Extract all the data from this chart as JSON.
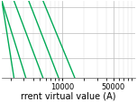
{
  "xlabel": "rrent virtual value (A)",
  "xlim": [
    1500,
    100000
  ],
  "ylim": [
    0.003,
    3000
  ],
  "background_color": "#ffffff",
  "grid_major_color": "#bbbbbb",
  "grid_minor_color": "#dddddd",
  "line_color": "#00aa55",
  "line_width": 1.0,
  "lines": [
    {
      "x": [
        1500,
        2200
      ],
      "y": [
        3000,
        0.003
      ]
    },
    {
      "x": [
        1500,
        3200
      ],
      "y": [
        3000,
        0.003
      ]
    },
    {
      "x": [
        2200,
        5500
      ],
      "y": [
        3000,
        0.003
      ]
    },
    {
      "x": [
        3500,
        9000
      ],
      "y": [
        3000,
        0.003
      ]
    },
    {
      "x": [
        5500,
        15000
      ],
      "y": [
        3000,
        0.003
      ]
    }
  ],
  "xtick_positions": [
    10000,
    50000
  ],
  "xtick_labels": [
    "10000",
    "50000"
  ],
  "xlabel_fontsize": 7,
  "tick_fontsize": 6
}
